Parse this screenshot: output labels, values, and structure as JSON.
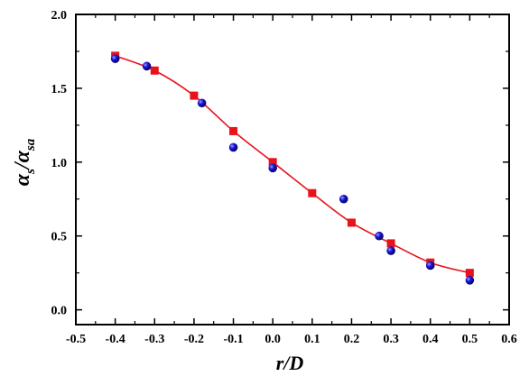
{
  "chart_data": {
    "type": "scatter",
    "title": "",
    "xlabel": "r/D",
    "ylabel": {
      "alpha1": "α",
      "sub1": "s",
      "slash": "/",
      "alpha2": "α",
      "sub2": "sa"
    },
    "xlim": [
      -0.5,
      0.6
    ],
    "ylim": [
      -0.1,
      2.0
    ],
    "xticks": [
      -0.5,
      -0.4,
      -0.3,
      -0.2,
      -0.1,
      0.0,
      0.1,
      0.2,
      0.3,
      0.4,
      0.5,
      0.6
    ],
    "xtick_labels": [
      "-0.5",
      "-0.4",
      "-0.3",
      "-0.2",
      "-0.1",
      "0.0",
      "0.1",
      "0.2",
      "0.3",
      "0.4",
      "0.5",
      "0.6"
    ],
    "yticks": [
      0.0,
      0.5,
      1.0,
      1.5,
      2.0
    ],
    "ytick_labels": [
      "0.0",
      "0.5",
      "1.0",
      "1.5",
      "2.0"
    ],
    "grid": false,
    "series": [
      {
        "marker": "square",
        "color": "#e8121b",
        "line": true,
        "x": [
          -0.4,
          -0.3,
          -0.2,
          -0.1,
          0.0,
          0.1,
          0.2,
          0.3,
          0.4,
          0.5
        ],
        "y": [
          1.72,
          1.62,
          1.45,
          1.21,
          1.0,
          0.79,
          0.59,
          0.45,
          0.32,
          0.25
        ]
      },
      {
        "marker": "sphere",
        "color": "#1a12d8",
        "line": false,
        "x": [
          -0.4,
          -0.32,
          -0.18,
          -0.1,
          0.0,
          0.18,
          0.27,
          0.3,
          0.4,
          0.5
        ],
        "y": [
          1.7,
          1.65,
          1.4,
          1.1,
          0.96,
          0.75,
          0.5,
          0.4,
          0.3,
          0.2
        ]
      }
    ]
  }
}
